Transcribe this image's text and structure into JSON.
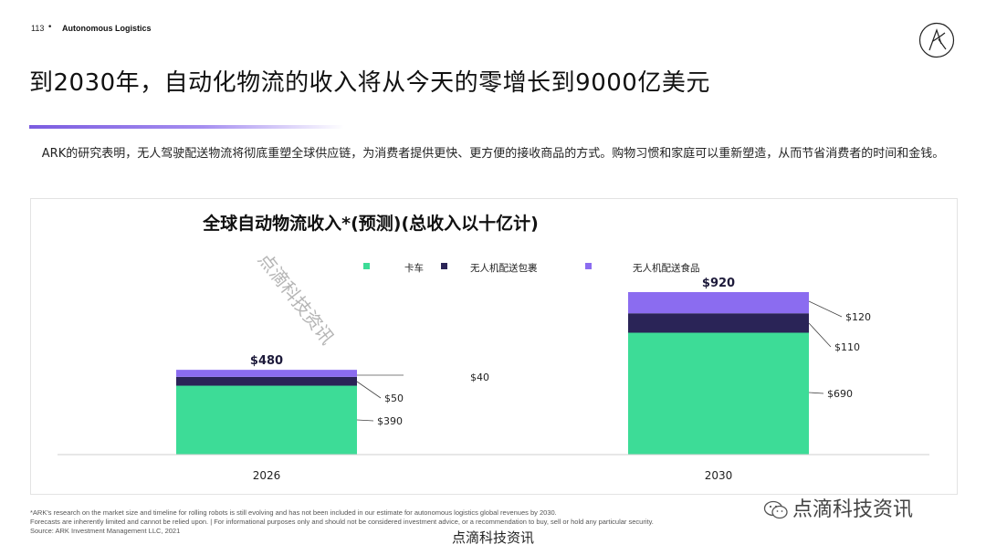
{
  "header": {
    "page_number": "113",
    "separator": "•",
    "section": "Autonomous Logistics"
  },
  "title": "到2030年，自动化物流的收入将从今天的零增长到9000亿美元",
  "intro": "ARK的研究表明，无人驾驶配送物流将彻底重塑全球供应链，为消费者提供更快、更方便的接收商品的方式。购物习惯和家庭可以重新塑造，从而节省消费者的时间和金钱。",
  "colors": {
    "truck": "#3ddc97",
    "drone_package": "#2a2457",
    "drone_food": "#8b6cf0",
    "accent": "#7b5ce0"
  },
  "chart_data": {
    "type": "bar",
    "stacked": true,
    "title": "全球自动物流收入*(预测)(总收入以十亿计)",
    "categories": [
      "2026",
      "2030"
    ],
    "series": [
      {
        "name": "卡车",
        "values": [
          390,
          690
        ],
        "color": "#3ddc97"
      },
      {
        "name": "无人机配送包裹",
        "values": [
          50,
          110
        ],
        "color": "#2a2457"
      },
      {
        "name": "无人机配送食品",
        "values": [
          40,
          120
        ],
        "color": "#8b6cf0"
      }
    ],
    "totals": [
      "$480",
      "$920"
    ],
    "segment_labels": [
      [
        "$390",
        "$50",
        "$40"
      ],
      [
        "$690",
        "$110",
        "$120"
      ]
    ],
    "legend_position": "top",
    "grid": false,
    "ylim": [
      0,
      920
    ]
  },
  "footnotes": [
    "*ARK's research on the market size and timeline for rolling robots is still evolving and has not been included in our estimate for autonomous logistics global revenues by 2030.",
    "Forecasts are inherently limited and cannot be relied upon. | For informational purposes only and should not be considered investment advice, or a recommendation to buy, sell or hold any particular security.",
    "Source: ARK Investment Management LLC, 2021"
  ],
  "watermark": {
    "diagonal": "点滴科技资讯",
    "wechat": "点滴科技资讯",
    "bottom": "点滴科技资讯"
  }
}
